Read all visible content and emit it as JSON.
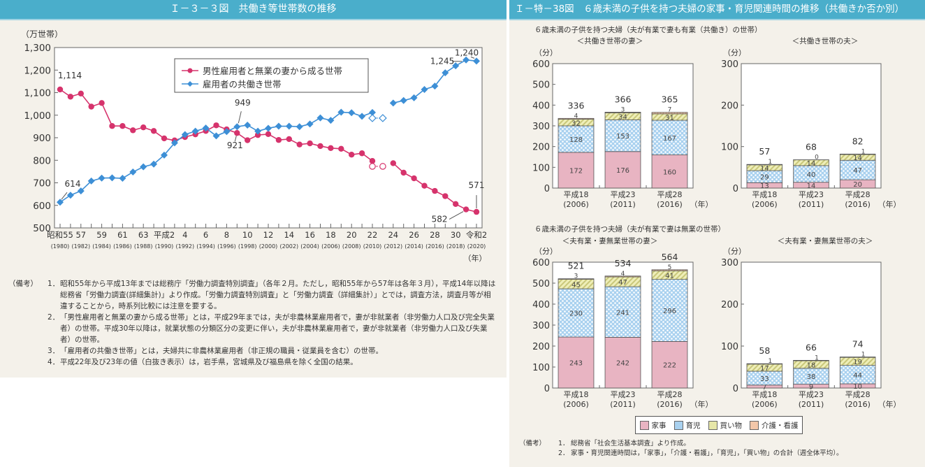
{
  "left": {
    "title": "Ｉ－３－３図　共働き等世帯数の推移",
    "notes_label": "（備考）",
    "notes": [
      {
        "num": "1．",
        "text": "昭和55年から平成13年までは総務庁「労働力調査特別調査」（各年２月。ただし，昭和55年から57年は各年３月），平成14年以降は総務省「労働力調査(詳細集計)」より作成。「労働力調査特別調査」と「労働力調査（詳細集計）」とでは，調査方法，調査月等が相違することから，時系列比較には注意を要する。"
      },
      {
        "num": "2．",
        "text": "「男性雇用者と無業の妻から成る世帯」とは，平成29年までは，夫が非農林業雇用者で，妻が非就業者（非労働力人口及び完全失業者）の世帯。平成30年以降は，就業状態の分類区分の変更に伴い，夫が非農林業雇用者で，妻が非就業者（非労働力人口及び失業者）の世帯。"
      },
      {
        "num": "3．",
        "text": "「雇用者の共働き世帯」とは，夫婦共に非農林業雇用者（非正規の職員・従業員を含む）の世帯。"
      },
      {
        "num": "4．",
        "text": "平成22年及び23年の値（白抜き表示）は，岩手県，宮城県及び福島県を除く全国の結果。"
      }
    ]
  },
  "right": {
    "title": "Ｉ－特－38図　６歳未満の子供を持つ夫婦の家事・育児関連時間の推移（共働きか否か別）",
    "section1_title": "６歳未満の子供を持つ夫婦（夫が有業で妻も有業（共働き）の世帯）",
    "section2_title": "６歳未満の子供を持つ夫婦（夫が有業で妻は無業の世帯）",
    "legend": [
      {
        "label": "家事",
        "color": "#e8b4c2"
      },
      {
        "label": "育児",
        "color": "#a9d1ef"
      },
      {
        "label": "買い物",
        "color": "#e6e6a8"
      },
      {
        "label": "介護・看護",
        "color": "#c98c6a"
      }
    ],
    "notes_label": "（備考）",
    "notes": [
      {
        "num": "1．",
        "text": "総務省「社会生活基本調査」より作成。"
      },
      {
        "num": "2．",
        "text": "家事・育児関連時間は，「家事」，「介護・看護」，「育児」，「買い物」の合計（週全体平均）。"
      }
    ]
  },
  "chart_data": [
    {
      "type": "line",
      "title": "Ｉ－３－３図　共働き等世帯数の推移",
      "ylabel": "（万世帯）",
      "xlabel": "（年）",
      "ylim": [
        500,
        1300
      ],
      "yticks": [
        500,
        600,
        700,
        800,
        900,
        1000,
        1100,
        1200,
        1300
      ],
      "ytick_labels": [
        "500",
        "600",
        "700",
        "800",
        "900",
        "1,000",
        "1,100",
        "1,200",
        "1,300"
      ],
      "x": [
        1980,
        1981,
        1982,
        1983,
        1984,
        1985,
        1986,
        1987,
        1988,
        1989,
        1990,
        1991,
        1992,
        1993,
        1994,
        1995,
        1996,
        1997,
        1998,
        1999,
        2000,
        2001,
        2002,
        2003,
        2004,
        2005,
        2006,
        2007,
        2008,
        2009,
        2010,
        2011,
        2012,
        2013,
        2014,
        2015,
        2016,
        2017,
        2018,
        2019,
        2020
      ],
      "xtick_labels": [
        {
          "x": 1980,
          "era": "昭和55",
          "year": "(1980)"
        },
        {
          "x": 1982,
          "era": "57",
          "year": "(1982)"
        },
        {
          "x": 1984,
          "era": "59",
          "year": "(1984)"
        },
        {
          "x": 1986,
          "era": "61",
          "year": "(1986)"
        },
        {
          "x": 1988,
          "era": "63",
          "year": "(1988)"
        },
        {
          "x": 1990,
          "era": "平成2",
          "year": "(1990)"
        },
        {
          "x": 1992,
          "era": "4",
          "year": "(1992)"
        },
        {
          "x": 1994,
          "era": "6",
          "year": "(1994)"
        },
        {
          "x": 1996,
          "era": "8",
          "year": "(1996)"
        },
        {
          "x": 1998,
          "era": "10",
          "year": "(1998)"
        },
        {
          "x": 2000,
          "era": "12",
          "year": "(2000)"
        },
        {
          "x": 2002,
          "era": "14",
          "year": "(2002)"
        },
        {
          "x": 2004,
          "era": "16",
          "year": "(2004)"
        },
        {
          "x": 2006,
          "era": "18",
          "year": "(2006)"
        },
        {
          "x": 2008,
          "era": "20",
          "year": "(2008)"
        },
        {
          "x": 2010,
          "era": "22",
          "year": "(2010)"
        },
        {
          "x": 2012,
          "era": "24",
          "year": "(2012)"
        },
        {
          "x": 2014,
          "era": "26",
          "year": "(2014)"
        },
        {
          "x": 2016,
          "era": "28",
          "year": "(2016)"
        },
        {
          "x": 2018,
          "era": "30",
          "year": "(2018)"
        },
        {
          "x": 2020,
          "era": "令和2",
          "year": "(2020)"
        }
      ],
      "legend_position": "top-center",
      "series": [
        {
          "name": "男性雇用者と無業の妻から成る世帯",
          "color": "#d6336c",
          "marker": "circle",
          "values": [
            1114,
            1082,
            1096,
            1038,
            1054,
            952,
            952,
            933,
            946,
            930,
            897,
            888,
            903,
            915,
            930,
            955,
            937,
            921,
            889,
            912,
            916,
            890,
            894,
            870,
            875,
            863,
            854,
            851,
            825,
            831,
            797,
            null,
            787,
            745,
            720,
            687,
            664,
            641,
            606,
            582,
            571
          ],
          "hollow_points": [
            {
              "x": 2010,
              "y": 773
            },
            {
              "x": 2011,
              "y": 773
            }
          ]
        },
        {
          "name": "雇用者の共働き世帯",
          "color": "#3d8fd6",
          "marker": "diamond",
          "values": [
            614,
            645,
            664,
            708,
            721,
            722,
            720,
            748,
            771,
            783,
            823,
            877,
            914,
            929,
            943,
            908,
            927,
            949,
            956,
            929,
            942,
            951,
            951,
            949,
            961,
            988,
            977,
            1013,
            1011,
            995,
            1012,
            null,
            1054,
            1065,
            1077,
            1114,
            1129,
            1188,
            1219,
            1245,
            1240
          ],
          "hollow_points": [
            {
              "x": 2010,
              "y": 987
            },
            {
              "x": 2011,
              "y": 987
            }
          ]
        }
      ],
      "annotations": [
        {
          "text": "1,114",
          "series": 0,
          "x": 1980
        },
        {
          "text": "614",
          "series": 1,
          "x": 1980
        },
        {
          "text": "949",
          "series": 1,
          "x": 1997
        },
        {
          "text": "921",
          "series": 0,
          "x": 1997
        },
        {
          "text": "1,245",
          "series": 1,
          "x": 2019
        },
        {
          "text": "1,240",
          "series": 1,
          "x": 2020
        },
        {
          "text": "582",
          "series": 0,
          "x": 2019
        },
        {
          "text": "571",
          "series": 0,
          "x": 2020
        }
      ]
    },
    {
      "type": "bar",
      "stacked": true,
      "title": "＜共働き世帯の妻＞",
      "ylabel": "（分）",
      "xlabel": "（年）",
      "ylim": [
        0,
        600
      ],
      "yticks": [
        0,
        100,
        200,
        300,
        400,
        500,
        600
      ],
      "categories": [
        [
          "平成18",
          "(2006)"
        ],
        [
          "平成23",
          "(2011)"
        ],
        [
          "平成28",
          "(2016)"
        ]
      ],
      "series": [
        {
          "name": "家事",
          "values": [
            172,
            176,
            160
          ]
        },
        {
          "name": "育児",
          "values": [
            128,
            153,
            167
          ]
        },
        {
          "name": "買い物",
          "values": [
            32,
            34,
            31
          ]
        },
        {
          "name": "介護・看護",
          "values": [
            4,
            3,
            7
          ]
        }
      ],
      "totals": [
        336,
        366,
        365
      ]
    },
    {
      "type": "bar",
      "stacked": true,
      "title": "＜共働き世帯の夫＞",
      "ylabel": "（分）",
      "xlabel": "（年）",
      "ylim": [
        0,
        300
      ],
      "yticks": [
        0,
        100,
        200,
        300
      ],
      "categories": [
        [
          "平成18",
          "(2006)"
        ],
        [
          "平成23",
          "(2011)"
        ],
        [
          "平成28",
          "(2016)"
        ]
      ],
      "series": [
        {
          "name": "家事",
          "values": [
            13,
            14,
            20
          ]
        },
        {
          "name": "育児",
          "values": [
            29,
            40,
            47
          ]
        },
        {
          "name": "買い物",
          "values": [
            14,
            14,
            14
          ]
        },
        {
          "name": "介護・看護",
          "values": [
            1,
            0,
            1
          ]
        }
      ],
      "totals": [
        57,
        68,
        82
      ]
    },
    {
      "type": "bar",
      "stacked": true,
      "title": "＜夫有業・妻無業世帯の妻＞",
      "ylabel": "（分）",
      "xlabel": "（年）",
      "ylim": [
        0,
        600
      ],
      "yticks": [
        0,
        100,
        200,
        300,
        400,
        500,
        600
      ],
      "categories": [
        [
          "平成18",
          "(2006)"
        ],
        [
          "平成23",
          "(2011)"
        ],
        [
          "平成28",
          "(2016)"
        ]
      ],
      "series": [
        {
          "name": "家事",
          "values": [
            243,
            242,
            222
          ]
        },
        {
          "name": "育児",
          "values": [
            230,
            241,
            296
          ]
        },
        {
          "name": "買い物",
          "values": [
            45,
            47,
            41
          ]
        },
        {
          "name": "介護・看護",
          "values": [
            3,
            4,
            5
          ]
        }
      ],
      "totals": [
        521,
        534,
        564
      ]
    },
    {
      "type": "bar",
      "stacked": true,
      "title": "＜夫有業・妻無業世帯の夫＞",
      "ylabel": "（分）",
      "xlabel": "（年）",
      "ylim": [
        0,
        300
      ],
      "yticks": [
        0,
        100,
        200,
        300
      ],
      "categories": [
        [
          "平成18",
          "(2006)"
        ],
        [
          "平成23",
          "(2011)"
        ],
        [
          "平成28",
          "(2016)"
        ]
      ],
      "series": [
        {
          "name": "家事",
          "values": [
            7,
            9,
            10
          ]
        },
        {
          "name": "育児",
          "values": [
            33,
            38,
            44
          ]
        },
        {
          "name": "買い物",
          "values": [
            17,
            18,
            19
          ]
        },
        {
          "name": "介護・看護",
          "values": [
            1,
            1,
            1
          ]
        }
      ],
      "totals": [
        58,
        66,
        74
      ]
    }
  ]
}
